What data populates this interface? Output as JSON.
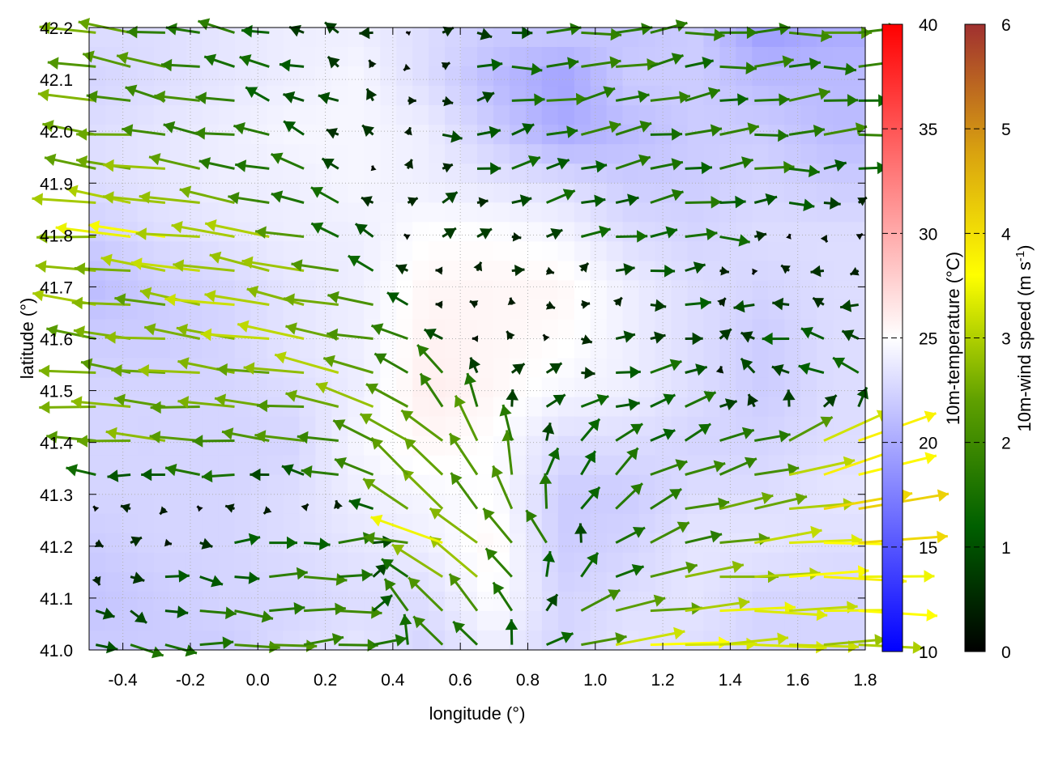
{
  "chart_data": {
    "type": "heatmap",
    "title": "",
    "xlabel": "longitude (°)",
    "ylabel": "latitude (°)",
    "xlim": [
      -0.5,
      1.8
    ],
    "ylim": [
      41.0,
      42.2
    ],
    "xticks": [
      "-0.4",
      "-0.2",
      "0.0",
      "0.2",
      "0.4",
      "0.6",
      "0.8",
      "1.0",
      "1.2",
      "1.4",
      "1.6",
      "1.8"
    ],
    "xtick_values": [
      -0.4,
      -0.2,
      0.0,
      0.2,
      0.4,
      0.6,
      0.8,
      1.0,
      1.2,
      1.4,
      1.6,
      1.8
    ],
    "yticks": [
      "41.0",
      "41.1",
      "41.2",
      "41.3",
      "41.4",
      "41.5",
      "41.6",
      "41.7",
      "41.8",
      "41.9",
      "42.0",
      "42.1",
      "42.2"
    ],
    "ytick_values": [
      41.0,
      41.1,
      41.2,
      41.3,
      41.4,
      41.5,
      41.6,
      41.7,
      41.8,
      41.9,
      42.0,
      42.1,
      42.2
    ],
    "grid": true,
    "grid_lon": [
      -0.5,
      -0.3,
      -0.1,
      0.1,
      0.3,
      0.5,
      0.7,
      0.9,
      1.1,
      1.3,
      1.5,
      1.7
    ],
    "grid_lat": [
      42.2,
      42.1,
      42.0,
      41.9,
      41.8,
      41.7,
      41.6,
      41.5,
      41.4,
      41.3,
      41.2,
      41.1,
      41.0
    ],
    "temperature": {
      "label": "10m-temperature (°C)",
      "range": [
        10,
        40
      ],
      "ticks": [
        "10",
        "15",
        "20",
        "25",
        "30",
        "35",
        "40"
      ],
      "tick_values": [
        10,
        15,
        20,
        25,
        30,
        35,
        40
      ],
      "colormap": [
        "#0000ff",
        "#ffffff",
        "#ff0000"
      ],
      "values": [
        [
          23,
          23,
          23.5,
          24,
          24,
          23,
          22,
          22,
          21.5,
          22,
          19,
          20
        ],
        [
          22.5,
          23,
          23.5,
          24,
          24.5,
          23,
          21,
          19.5,
          22,
          22,
          21,
          21
        ],
        [
          23,
          23.5,
          24,
          24.5,
          24.5,
          24,
          22,
          20,
          21,
          22,
          22,
          21
        ],
        [
          23,
          23.5,
          24,
          24,
          24.5,
          24,
          23.5,
          23,
          22,
          22,
          22.5,
          22
        ],
        [
          22,
          23,
          23.5,
          24,
          24,
          25,
          25,
          24.5,
          23,
          22.5,
          23,
          23
        ],
        [
          21,
          22,
          22.5,
          23.5,
          24,
          25.5,
          25.5,
          25.5,
          24,
          23,
          22.5,
          23
        ],
        [
          22,
          22,
          22.5,
          23.5,
          24,
          25.8,
          25.5,
          25.2,
          24,
          23,
          22,
          23
        ],
        [
          22.5,
          22.5,
          22.5,
          23,
          24,
          26,
          25.5,
          24.5,
          24,
          23,
          22,
          23
        ],
        [
          22.5,
          22.5,
          22.5,
          22.5,
          24.5,
          25.5,
          25,
          23,
          23,
          22.5,
          22.5,
          23
        ],
        [
          22.5,
          22.5,
          22.5,
          23,
          24,
          24.5,
          25,
          22,
          22,
          23,
          23,
          23.5
        ],
        [
          22,
          22.5,
          22.5,
          23,
          23.5,
          24,
          25.5,
          22,
          22.5,
          23.5,
          23.5,
          23
        ],
        [
          21.5,
          22,
          22.5,
          22.5,
          23,
          23,
          25,
          22.5,
          23,
          23.5,
          22.5,
          22.5
        ],
        [
          22,
          22,
          22,
          23,
          23.5,
          22.5,
          24,
          22.5,
          23.5,
          23,
          22.5,
          22.5
        ]
      ]
    },
    "wind": {
      "label": "10m-wind speed (m s",
      "label_sup": "-1",
      "label_end": ")",
      "range": [
        0,
        6
      ],
      "ticks": [
        "0",
        "1",
        "2",
        "3",
        "4",
        "5",
        "6"
      ],
      "tick_values": [
        0,
        1,
        2,
        3,
        4,
        5,
        6
      ],
      "colormap": [
        "#000000",
        "#006000",
        "#5fa000",
        "#ffff00",
        "#d8a010",
        "#a03030"
      ],
      "u": [
        [
          -2.5,
          -2,
          -1.5,
          -1,
          -0.5,
          0,
          1,
          1.5,
          2,
          1.5,
          2,
          2
        ],
        [
          -2.5,
          -2,
          -1.8,
          -1,
          -0.5,
          0.3,
          1.2,
          2,
          1.5,
          1.5,
          1.5,
          1.5
        ],
        [
          -2.5,
          -2,
          -1.8,
          -1.2,
          -0.5,
          0.5,
          1.2,
          1.5,
          1.8,
          1.5,
          1.8,
          1.8
        ],
        [
          -2.5,
          -3,
          -2,
          -1.5,
          -0.5,
          0.6,
          1,
          1.2,
          1.2,
          1.5,
          1.5,
          1
        ],
        [
          -2.8,
          -3.5,
          -3,
          -2.5,
          -1,
          0.5,
          0.5,
          1,
          1.5,
          1.5,
          0.5,
          0
        ],
        [
          -2.8,
          -2.5,
          -3,
          -3,
          -2,
          -0.5,
          0.2,
          0.2,
          0.5,
          1,
          -1,
          -0.5
        ],
        [
          -2.5,
          -2.5,
          -2.8,
          -3,
          -2.5,
          -1,
          -0.3,
          0.2,
          0.8,
          1,
          -1,
          -1
        ],
        [
          -2.5,
          -2.5,
          -2.5,
          -2.5,
          -2.8,
          -1.5,
          0.5,
          1,
          1.5,
          1,
          -1,
          -1
        ],
        [
          -2.5,
          -2.5,
          -2.2,
          -2,
          -2,
          -2,
          -1,
          0.8,
          1,
          1.5,
          1.5,
          3.5
        ],
        [
          -0.3,
          -0.5,
          -1,
          -0.3,
          -1.5,
          -2,
          -0.5,
          0.5,
          1.5,
          2,
          2.5,
          4
        ],
        [
          0.2,
          0.5,
          1,
          1.5,
          2,
          -3.5,
          -2,
          -0.5,
          1.5,
          2,
          3,
          4
        ],
        [
          0.5,
          1,
          1.5,
          2,
          1.5,
          -2,
          -1.5,
          1,
          2,
          3,
          3.5,
          3.5
        ],
        [
          1,
          1.5,
          2,
          2,
          2,
          -1,
          -1,
          2,
          3.5,
          3.5,
          3,
          3
        ]
      ],
      "v": [
        [
          0.3,
          0.2,
          0.3,
          0.3,
          0.2,
          0,
          0,
          0,
          0.3,
          0,
          0,
          0
        ],
        [
          0.5,
          0.5,
          0.3,
          0.4,
          0.3,
          0,
          0.1,
          0.1,
          0.5,
          0.2,
          0.2,
          0.1
        ],
        [
          0.3,
          0.2,
          0.3,
          0.4,
          0.5,
          0,
          0.2,
          0.5,
          0.3,
          0.2,
          0.2,
          0.2
        ],
        [
          0.3,
          0.5,
          0.3,
          0.5,
          0.4,
          0.2,
          0.3,
          0.4,
          0.3,
          0.3,
          0,
          0
        ],
        [
          0.2,
          0.4,
          0.4,
          0.5,
          0.5,
          0.3,
          0.2,
          0.2,
          0.3,
          0,
          0,
          0
        ],
        [
          0.3,
          0.3,
          0.5,
          0.5,
          0.5,
          0.2,
          0.1,
          0,
          0.2,
          0,
          0,
          0
        ],
        [
          0.3,
          0.3,
          0.4,
          0.5,
          0.5,
          0.4,
          0.2,
          0.1,
          0,
          0.3,
          0.2,
          0.3
        ],
        [
          0.2,
          0.2,
          0.2,
          0.2,
          0.8,
          1.5,
          1,
          0,
          0.3,
          0.5,
          0.5,
          0.5
        ],
        [
          0.2,
          0.2,
          0.2,
          0.2,
          0.5,
          1.5,
          2,
          0.8,
          0.8,
          0.5,
          0.5,
          1.5
        ],
        [
          0,
          0,
          0,
          0,
          0.5,
          2,
          2,
          1.5,
          1,
          0.5,
          0.5,
          0.8
        ],
        [
          0,
          0,
          0,
          0.1,
          0,
          0.5,
          2,
          1,
          0.8,
          0.4,
          0.3,
          0
        ],
        [
          -0.3,
          -0.3,
          -0.2,
          0,
          0.2,
          2,
          1.5,
          1,
          0.5,
          0.2,
          0,
          0
        ],
        [
          -0.5,
          -0.3,
          0,
          0.1,
          0.1,
          1.5,
          1,
          0.5,
          0.3,
          0.1,
          0,
          0
        ]
      ]
    }
  }
}
